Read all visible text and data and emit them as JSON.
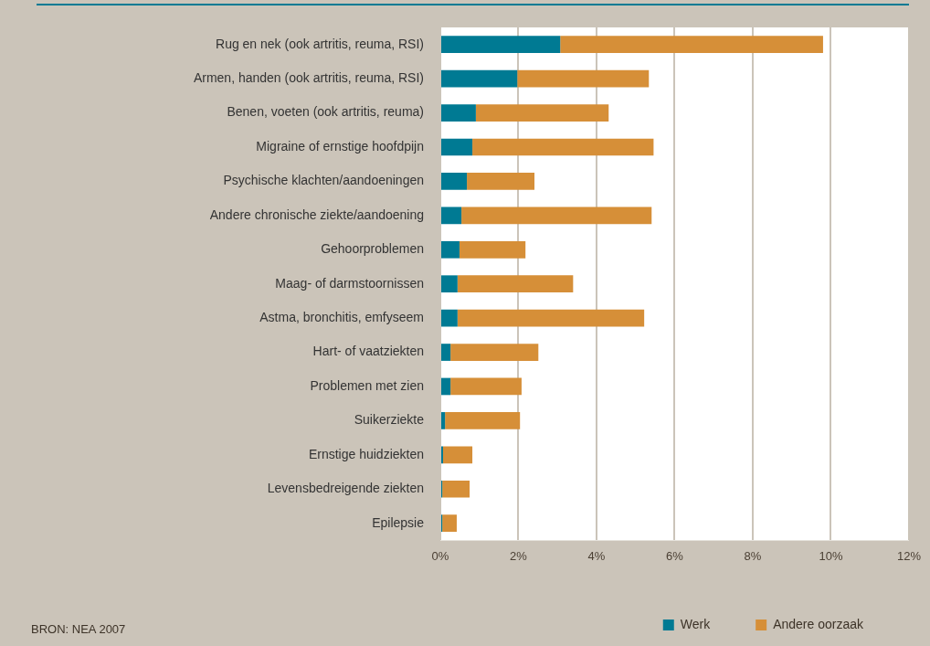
{
  "chart_data": {
    "type": "bar",
    "orientation": "horizontal",
    "stacked": true,
    "categories": [
      "Rug en nek (ook artritis, reuma, RSI)",
      "Armen, handen (ook artritis, reuma, RSI)",
      "Benen, voeten (ook artritis, reuma)",
      "Migraine of ernstige hoofdpijn",
      "Psychische klachten/aandoeningen",
      "Andere chronische ziekte/aandoening",
      "Gehoorproblemen",
      "Maag- of darmstoornissen",
      "Astma, bronchitis, emfyseem",
      "Hart- of vaatziekten",
      "Problemen met zien",
      "Suikerziekte",
      "Ernstige huidziekten",
      "Levensbedreigende ziekten",
      "Epilepsie"
    ],
    "series": [
      {
        "name": "Werk",
        "color": "#007a93",
        "values": [
          3.07,
          1.97,
          0.91,
          0.82,
          0.68,
          0.54,
          0.49,
          0.44,
          0.44,
          0.26,
          0.26,
          0.12,
          0.07,
          0.05,
          0.05
        ]
      },
      {
        "name": "Andere oorzaak",
        "color": "#d68f38",
        "values": [
          6.73,
          3.37,
          3.4,
          4.64,
          1.73,
          4.87,
          1.69,
          2.96,
          4.78,
          2.25,
          1.82,
          1.92,
          0.75,
          0.7,
          0.37
        ]
      }
    ],
    "xlim": [
      0,
      12
    ],
    "xticks": [
      {
        "value": 0,
        "label": "0%"
      },
      {
        "value": 2,
        "label": "2%"
      },
      {
        "value": 4,
        "label": "4%"
      },
      {
        "value": 6,
        "label": "6%"
      },
      {
        "value": 8,
        "label": "8%"
      },
      {
        "value": 10,
        "label": "10%"
      },
      {
        "value": 12,
        "label": "12%"
      }
    ],
    "grid": "x",
    "legend": "bottom right",
    "annotations": [
      "BRON: NEA 2007"
    ]
  }
}
